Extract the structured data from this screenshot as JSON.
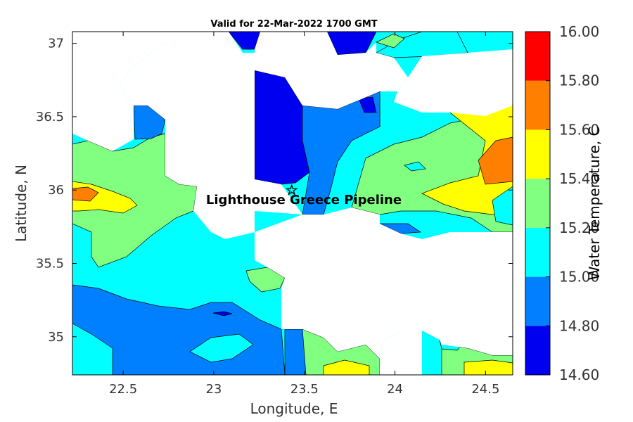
{
  "title": "Valid for 22-Mar-2022 1700 GMT",
  "annotation": "Lighthouse Greece Pipeline",
  "marker_icon": "star-icon",
  "xlabel": "Longitude, E",
  "ylabel": "Latitude, N",
  "colorbar_label": "Water Temperature, C",
  "chart_data": {
    "type": "heatmap",
    "x_range": [
      22.22,
      24.65
    ],
    "y_range": [
      34.74,
      37.08
    ],
    "x_ticks": [
      "22.5",
      "23",
      "23.5",
      "24",
      "24.5"
    ],
    "y_ticks": [
      "35",
      "35.5",
      "36",
      "36.5",
      "37"
    ],
    "colorbar": {
      "ticks": [
        "14.60",
        "14.80",
        "15.00",
        "15.20",
        "15.40",
        "15.60",
        "15.80",
        "16.00"
      ],
      "colors": [
        "#0000f0",
        "#0080ff",
        "#00ffff",
        "#80ff80",
        "#ffff00",
        "#ff8000",
        "#ff0000"
      ]
    },
    "marker": {
      "lon": 23.43,
      "lat": 36.0
    }
  }
}
